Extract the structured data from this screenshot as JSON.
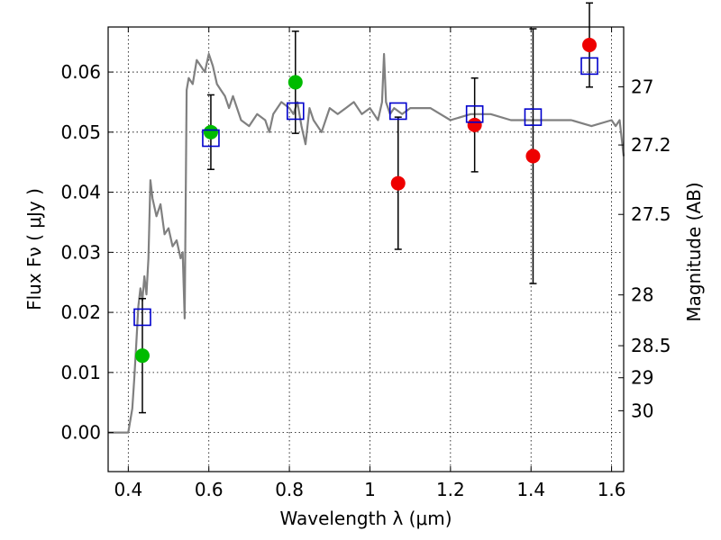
{
  "chart_data": {
    "type": "scatter",
    "xlabel": "Wavelength  λ (μm)",
    "ylabel": "Flux  Fν  ( μJy )",
    "ylabel_right": "Magnitude (AB)",
    "xlim": [
      0.35,
      1.63
    ],
    "ylim": [
      -0.0065,
      0.0675
    ],
    "x_ticks": [
      0.4,
      0.6,
      0.8,
      1.0,
      1.2,
      1.4,
      1.6
    ],
    "x_tick_labels": [
      "0.4",
      "0.6",
      "0.8",
      "1",
      "1.2",
      "1.4",
      "1.6"
    ],
    "y_ticks": [
      0.0,
      0.01,
      0.02,
      0.03,
      0.04,
      0.05,
      0.06
    ],
    "y_tick_labels": [
      "0.00",
      "0.01",
      "0.02",
      "0.03",
      "0.04",
      "0.05",
      "0.06"
    ],
    "right_ticks": [
      27,
      27.2,
      27.5,
      28,
      28.5,
      29,
      30
    ],
    "right_tick_labels": [
      "27",
      "27.2",
      "27.5",
      "28",
      "28.5",
      "29",
      "30"
    ],
    "grid": true,
    "colors": {
      "model": "#808080",
      "green": "#00bb00",
      "red": "#ee0000",
      "model_phot": "#0000cc",
      "errorbar": "#000000"
    },
    "model_sed": {
      "x": [
        0.35,
        0.4,
        0.41,
        0.415,
        0.42,
        0.425,
        0.43,
        0.435,
        0.44,
        0.445,
        0.45,
        0.455,
        0.46,
        0.47,
        0.48,
        0.49,
        0.5,
        0.51,
        0.52,
        0.53,
        0.535,
        0.54,
        0.545,
        0.55,
        0.56,
        0.57,
        0.58,
        0.59,
        0.6,
        0.61,
        0.62,
        0.63,
        0.64,
        0.65,
        0.66,
        0.67,
        0.68,
        0.7,
        0.72,
        0.74,
        0.75,
        0.76,
        0.78,
        0.8,
        0.81,
        0.82,
        0.83,
        0.84,
        0.85,
        0.86,
        0.88,
        0.9,
        0.92,
        0.94,
        0.96,
        0.98,
        1.0,
        1.02,
        1.03,
        1.035,
        1.04,
        1.05,
        1.06,
        1.08,
        1.1,
        1.15,
        1.2,
        1.25,
        1.3,
        1.35,
        1.4,
        1.45,
        1.5,
        1.55,
        1.6,
        1.61,
        1.62,
        1.63
      ],
      "y": [
        0.0,
        0.0,
        0.004,
        0.009,
        0.015,
        0.021,
        0.024,
        0.022,
        0.026,
        0.023,
        0.029,
        0.042,
        0.039,
        0.036,
        0.038,
        0.033,
        0.034,
        0.031,
        0.032,
        0.029,
        0.03,
        0.019,
        0.057,
        0.059,
        0.058,
        0.062,
        0.061,
        0.06,
        0.063,
        0.061,
        0.058,
        0.057,
        0.056,
        0.054,
        0.056,
        0.054,
        0.052,
        0.051,
        0.053,
        0.052,
        0.05,
        0.053,
        0.055,
        0.054,
        0.053,
        0.055,
        0.051,
        0.048,
        0.054,
        0.052,
        0.05,
        0.054,
        0.053,
        0.054,
        0.055,
        0.053,
        0.054,
        0.052,
        0.055,
        0.063,
        0.055,
        0.053,
        0.054,
        0.053,
        0.054,
        0.054,
        0.052,
        0.053,
        0.053,
        0.052,
        0.052,
        0.052,
        0.052,
        0.051,
        0.052,
        0.051,
        0.052,
        0.046
      ]
    },
    "series": [
      {
        "marker": "circle",
        "color": "green",
        "x": [
          0.435,
          0.605,
          0.815
        ],
        "y": [
          0.0128,
          0.05,
          0.0583
        ],
        "yerr": [
          0.0095,
          0.0062,
          0.0085
        ]
      },
      {
        "marker": "circle",
        "color": "red",
        "x": [
          1.07,
          1.26,
          1.405,
          1.545
        ],
        "y": [
          0.0415,
          0.0512,
          0.046,
          0.0645
        ],
        "yerr": [
          0.011,
          0.0078,
          0.0212,
          0.007
        ]
      },
      {
        "marker": "square",
        "color": "model_phot",
        "x": [
          0.435,
          0.605,
          0.815,
          1.07,
          1.26,
          1.405,
          1.545
        ],
        "y": [
          0.0192,
          0.049,
          0.0535,
          0.0535,
          0.053,
          0.0525,
          0.061
        ]
      }
    ]
  }
}
